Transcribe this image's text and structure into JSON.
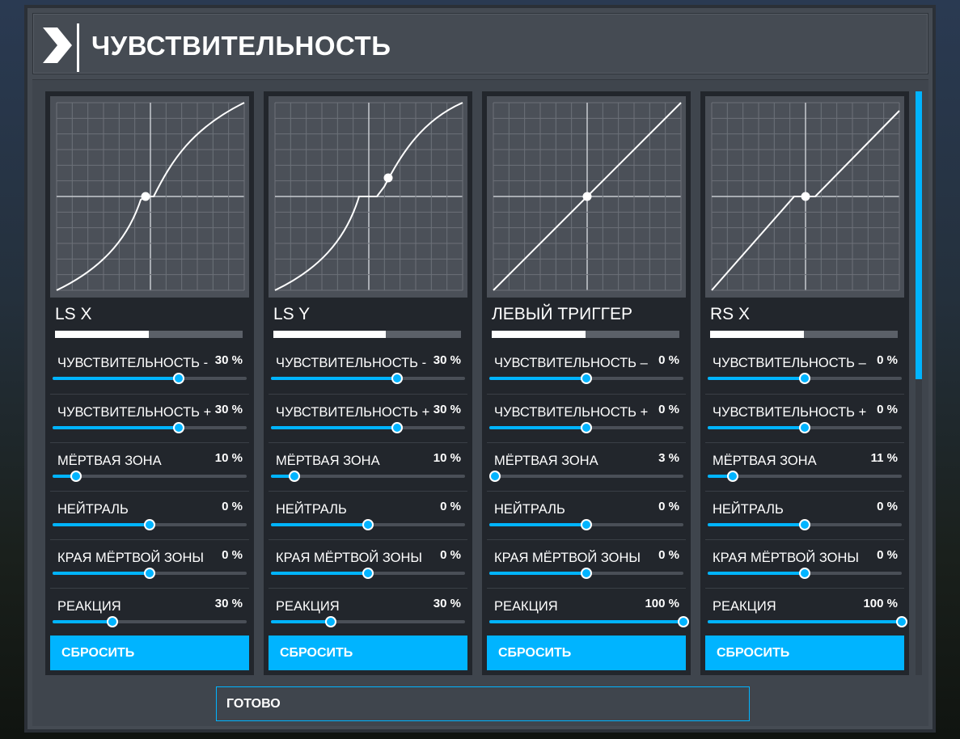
{
  "header": {
    "title": "ЧУВСТВИТЕЛЬНОСТЬ"
  },
  "colors": {
    "accent": "#00b4ff",
    "panel": "#454b53",
    "card": "#22262c",
    "graph": "#4b5058"
  },
  "cards": [
    {
      "name": "LS X",
      "curve_type": "s-curve-deadzone",
      "settings": [
        {
          "label": "ЧУВСТВИТЕЛЬНОСТЬ -",
          "value": "30 %",
          "position": 0.65
        },
        {
          "label": "ЧУВСТВИТЕЛЬНОСТЬ +",
          "value": "30 %",
          "position": 0.65
        },
        {
          "label": "МЁРТВАЯ ЗОНА",
          "value": "10 %",
          "position": 0.12
        },
        {
          "label": "НЕЙТРАЛЬ",
          "value": "0 %",
          "position": 0.5
        },
        {
          "label": "КРАЯ МЁРТВОЙ ЗОНЫ",
          "value": "0 %",
          "position": 0.5
        },
        {
          "label": "РЕАКЦИЯ",
          "value": "30 %",
          "position": 0.31
        }
      ],
      "reset_label": "СБРОСИТЬ"
    },
    {
      "name": "LS Y",
      "curve_type": "s-curve-deadzone-offset",
      "settings": [
        {
          "label": "ЧУВСТВИТЕЛЬНОСТЬ -",
          "value": "30 %",
          "position": 0.65
        },
        {
          "label": "ЧУВСТВИТЕЛЬНОСТЬ +",
          "value": "30 %",
          "position": 0.65
        },
        {
          "label": "МЁРТВАЯ ЗОНА",
          "value": "10 %",
          "position": 0.12
        },
        {
          "label": "НЕЙТРАЛЬ",
          "value": "0 %",
          "position": 0.5
        },
        {
          "label": "КРАЯ МЁРТВОЙ ЗОНЫ",
          "value": "0 %",
          "position": 0.5
        },
        {
          "label": "РЕАКЦИЯ",
          "value": "30 %",
          "position": 0.31
        }
      ],
      "reset_label": "СБРОСИТЬ"
    },
    {
      "name": "ЛЕВЫЙ ТРИГГЕР",
      "curve_type": "linear",
      "settings": [
        {
          "label": "ЧУВСТВИТЕЛЬНОСТЬ –",
          "value": "0 %",
          "position": 0.5
        },
        {
          "label": "ЧУВСТВИТЕЛЬНОСТЬ +",
          "value": "0 %",
          "position": 0.5
        },
        {
          "label": "МЁРТВАЯ ЗОНА",
          "value": "3 %",
          "position": 0.03
        },
        {
          "label": "НЕЙТРАЛЬ",
          "value": "0 %",
          "position": 0.5
        },
        {
          "label": "КРАЯ МЁРТВОЙ ЗОНЫ",
          "value": "0 %",
          "position": 0.5
        },
        {
          "label": "РЕАКЦИЯ",
          "value": "100 %",
          "position": 1.0
        }
      ],
      "reset_label": "СБРОСИТЬ"
    },
    {
      "name": "RS X",
      "curve_type": "linear-deadzone",
      "settings": [
        {
          "label": "ЧУВСТВИТЕЛЬНОСТЬ –",
          "value": "0 %",
          "position": 0.5
        },
        {
          "label": "ЧУВСТВИТЕЛЬНОСТЬ +",
          "value": "0 %",
          "position": 0.5
        },
        {
          "label": "МЁРТВАЯ ЗОНА",
          "value": "11 %",
          "position": 0.13
        },
        {
          "label": "НЕЙТРАЛЬ",
          "value": "0 %",
          "position": 0.5
        },
        {
          "label": "КРАЯ МЁРТВОЙ ЗОНЫ",
          "value": "0 %",
          "position": 0.5
        },
        {
          "label": "РЕАКЦИЯ",
          "value": "100 %",
          "position": 1.0
        }
      ],
      "reset_label": "СБРОСИТЬ"
    }
  ],
  "footer": {
    "done_label": "ГОТОВО"
  }
}
